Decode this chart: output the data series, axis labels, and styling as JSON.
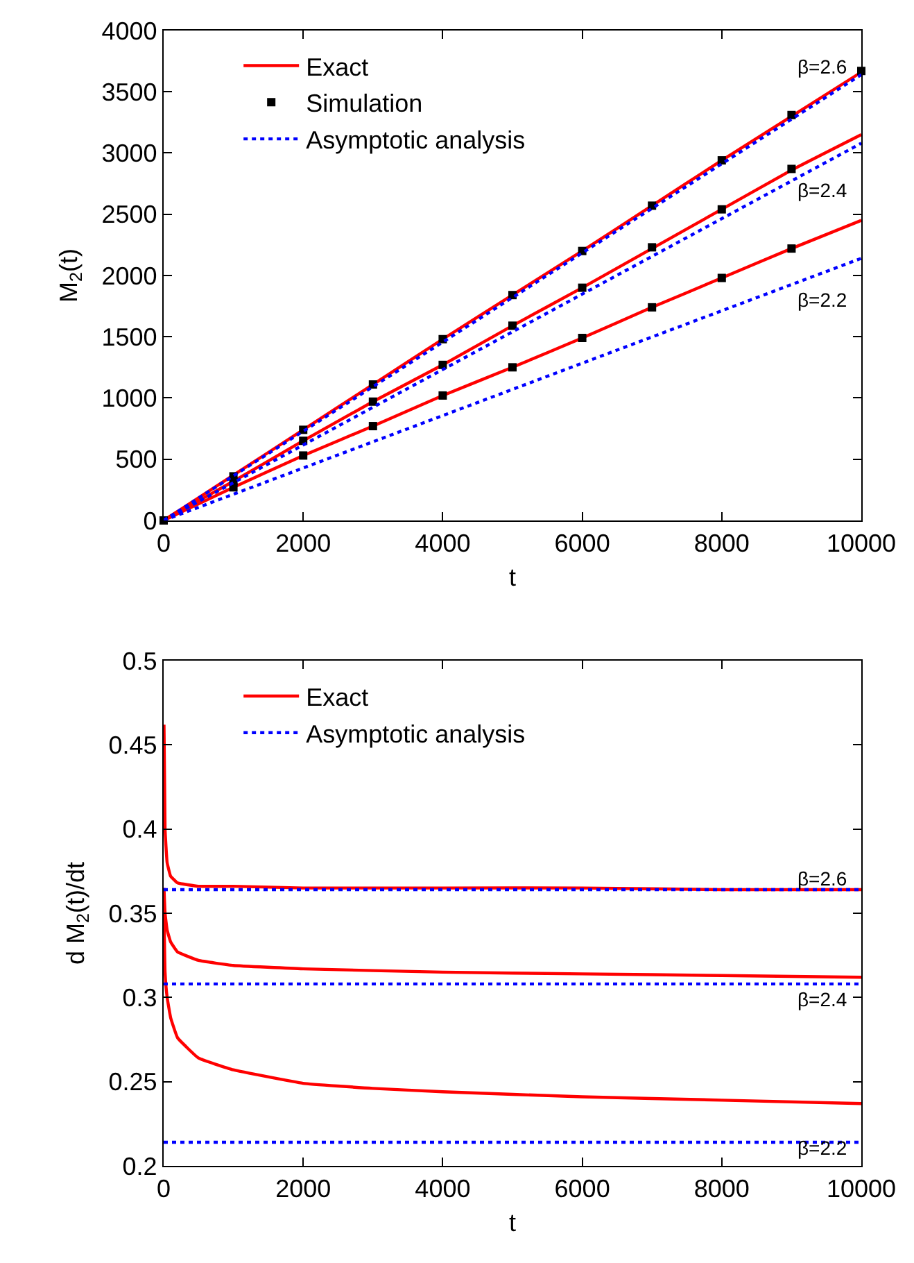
{
  "chart_data": [
    {
      "type": "line",
      "xlabel": "t",
      "ylabel": "M$_{2}$(t)",
      "xlim": [
        0,
        10000
      ],
      "xticks": [
        0,
        2000,
        4000,
        6000,
        8000,
        10000
      ],
      "ylim": [
        0,
        4000
      ],
      "yticks": [
        0,
        500,
        1000,
        1500,
        2000,
        2500,
        3000,
        3500,
        4000
      ],
      "legend": "top",
      "series": [
        {
          "name": "Exact",
          "line_style": "solid",
          "color": "#ff0000",
          "x": [
            0,
            1000,
            2000,
            3000,
            4000,
            5000,
            6000,
            7000,
            8000,
            9000,
            10000
          ],
          "values": [
            0,
            370,
            740,
            1110,
            1480,
            1840,
            2200,
            2570,
            2940,
            3300,
            3660
          ]
        },
        {
          "line_style": "solid",
          "color": "#ff0000",
          "x": [
            0,
            1000,
            2000,
            3000,
            4000,
            5000,
            6000,
            7000,
            8000,
            9000,
            10000
          ],
          "values": [
            0,
            320,
            650,
            970,
            1270,
            1590,
            1900,
            2220,
            2540,
            2860,
            3150
          ]
        },
        {
          "line_style": "solid",
          "color": "#ff0000",
          "x": [
            0,
            1000,
            2000,
            3000,
            4000,
            5000,
            6000,
            7000,
            8000,
            9000,
            10000
          ],
          "values": [
            0,
            270,
            530,
            770,
            1020,
            1250,
            1490,
            1740,
            1980,
            2220,
            2450
          ]
        },
        {
          "name": "Simulation",
          "type": "scatter",
          "marker": "square",
          "color": "#000000",
          "x": [
            0,
            1000,
            2000,
            3000,
            4000,
            5000,
            6000,
            7000,
            8000,
            9000,
            10000,
            1000,
            2000,
            3000,
            4000,
            5000,
            6000,
            7000,
            8000,
            9000,
            1000,
            2000,
            3000,
            4000,
            5000,
            6000,
            7000,
            8000,
            9000
          ],
          "values": [
            0,
            360,
            740,
            1110,
            1480,
            1840,
            2200,
            2570,
            2940,
            3310,
            3670,
            320,
            650,
            970,
            1270,
            1590,
            1900,
            2230,
            2540,
            2870,
            270,
            530,
            770,
            1020,
            1250,
            1490,
            1740,
            1980,
            2220
          ]
        },
        {
          "name": "Asymptotic analysis",
          "line_style": "dotted",
          "color": "#0000ff",
          "x": [
            0,
            10000
          ],
          "values": [
            0,
            3640
          ]
        },
        {
          "line_style": "dotted",
          "color": "#0000ff",
          "x": [
            0,
            10000
          ],
          "values": [
            0,
            3080
          ]
        },
        {
          "line_style": "dotted",
          "color": "#0000ff",
          "x": [
            0,
            10000
          ],
          "values": [
            0,
            2140
          ]
        }
      ],
      "annotations": [
        "β=2.6",
        "β=2.4",
        "β=2.2"
      ]
    },
    {
      "type": "line",
      "xlabel": "t",
      "ylabel": "d M$_{2}$(t)/dt",
      "xlim": [
        0,
        10000
      ],
      "xticks": [
        0,
        2000,
        4000,
        6000,
        8000,
        10000
      ],
      "ylim": [
        0.2,
        0.5
      ],
      "yticks": [
        0.2,
        0.25,
        0.3,
        0.35,
        0.4,
        0.45,
        0.5
      ],
      "legend": "top",
      "series": [
        {
          "name": "Exact",
          "line_style": "solid",
          "color": "#ff0000",
          "x": [
            5,
            20,
            50,
            100,
            200,
            500,
            1000,
            2000,
            4000,
            6000,
            8000,
            10000
          ],
          "values": [
            0.462,
            0.4,
            0.38,
            0.372,
            0.368,
            0.366,
            0.366,
            0.365,
            0.365,
            0.365,
            0.364,
            0.364
          ]
        },
        {
          "line_style": "solid",
          "color": "#ff0000",
          "x": [
            5,
            20,
            50,
            100,
            200,
            500,
            1000,
            2000,
            4000,
            6000,
            8000,
            10000
          ],
          "values": [
            0.365,
            0.35,
            0.34,
            0.333,
            0.327,
            0.322,
            0.319,
            0.317,
            0.315,
            0.314,
            0.313,
            0.312
          ]
        },
        {
          "line_style": "solid",
          "color": "#ff0000",
          "x": [
            5,
            20,
            50,
            100,
            200,
            500,
            1000,
            2000,
            3000,
            4000,
            6000,
            8000,
            10000
          ],
          "values": [
            0.35,
            0.315,
            0.3,
            0.288,
            0.276,
            0.264,
            0.257,
            0.249,
            0.246,
            0.244,
            0.241,
            0.239,
            0.237
          ]
        },
        {
          "name": "Asymptotic analysis",
          "line_style": "dotted",
          "color": "#0000ff",
          "x": [
            0,
            10000
          ],
          "values": [
            0.364,
            0.364
          ]
        },
        {
          "line_style": "dotted",
          "color": "#0000ff",
          "x": [
            0,
            10000
          ],
          "values": [
            0.308,
            0.308
          ]
        },
        {
          "line_style": "dotted",
          "color": "#0000ff",
          "x": [
            0,
            10000
          ],
          "values": [
            0.214,
            0.214
          ]
        }
      ],
      "annotations": [
        "β=2.6",
        "β=2.4",
        "β=2.2"
      ]
    }
  ]
}
